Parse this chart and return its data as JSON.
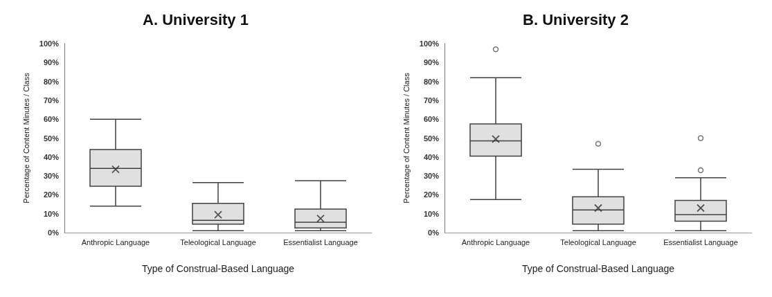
{
  "chart_data": [
    {
      "type": "box",
      "title": "A. University 1",
      "xlabel": "Type of Construal-Based Language",
      "ylabel": "Percentage of Content Minutes / Class",
      "categories": [
        "Anthropic Language",
        "Teleological Language",
        "Essentialist Language"
      ],
      "boxes": [
        {
          "low": 14,
          "q1": 24.5,
          "median": 34,
          "q3": 44,
          "high": 60,
          "mean": 33.5
        },
        {
          "low": 1,
          "q1": 4.5,
          "median": 6.5,
          "q3": 15.5,
          "high": 26.5,
          "mean": 9.5
        },
        {
          "low": 1,
          "q1": 2.5,
          "median": 5.5,
          "q3": 12.5,
          "high": 27.5,
          "mean": 7.5
        }
      ],
      "color": "#e0e0e0",
      "ylim": [
        0,
        100
      ],
      "yticks": [
        {
          "value": 0,
          "label": "0%"
        },
        {
          "value": 10,
          "label": "10%"
        },
        {
          "value": 20,
          "label": "20%"
        },
        {
          "value": 30,
          "label": "30%"
        },
        {
          "value": 40,
          "label": "40%"
        },
        {
          "value": 50,
          "label": "50%"
        },
        {
          "value": 60,
          "label": "60%"
        },
        {
          "value": 70,
          "label": "70%"
        },
        {
          "value": 80,
          "label": "80%"
        },
        {
          "value": 90,
          "label": "90%"
        },
        {
          "value": 100,
          "label": "100%"
        }
      ],
      "grid": false
    },
    {
      "type": "box",
      "title": "B. University 2",
      "xlabel": "Type of Construal-Based Language",
      "ylabel": "Percentage of Content Minutes / Class",
      "categories": [
        "Anthropic Language",
        "Teleological Language",
        "Essentialist Language"
      ],
      "boxes": [
        {
          "low": 17.5,
          "q1": 40.5,
          "median": 48.5,
          "q3": 57.5,
          "high": 82,
          "mean": 49.5,
          "outliers": [
            97
          ]
        },
        {
          "low": 1,
          "q1": 4.5,
          "median": 12,
          "q3": 19,
          "high": 33.5,
          "mean": 13,
          "outliers": [
            47
          ]
        },
        {
          "low": 1,
          "q1": 6,
          "median": 9.5,
          "q3": 17,
          "high": 29,
          "mean": 13,
          "outliers": [
            33,
            50
          ]
        }
      ],
      "color": "#e0e0e0",
      "ylim": [
        0,
        100
      ],
      "yticks": [
        {
          "value": 0,
          "label": "0%"
        },
        {
          "value": 10,
          "label": "10%"
        },
        {
          "value": 20,
          "label": "20%"
        },
        {
          "value": 30,
          "label": "30%"
        },
        {
          "value": 40,
          "label": "40%"
        },
        {
          "value": 50,
          "label": "50%"
        },
        {
          "value": 60,
          "label": "60%"
        },
        {
          "value": 70,
          "label": "70%"
        },
        {
          "value": 80,
          "label": "80%"
        },
        {
          "value": 90,
          "label": "90%"
        },
        {
          "value": 100,
          "label": "100%"
        }
      ],
      "grid": false
    }
  ]
}
